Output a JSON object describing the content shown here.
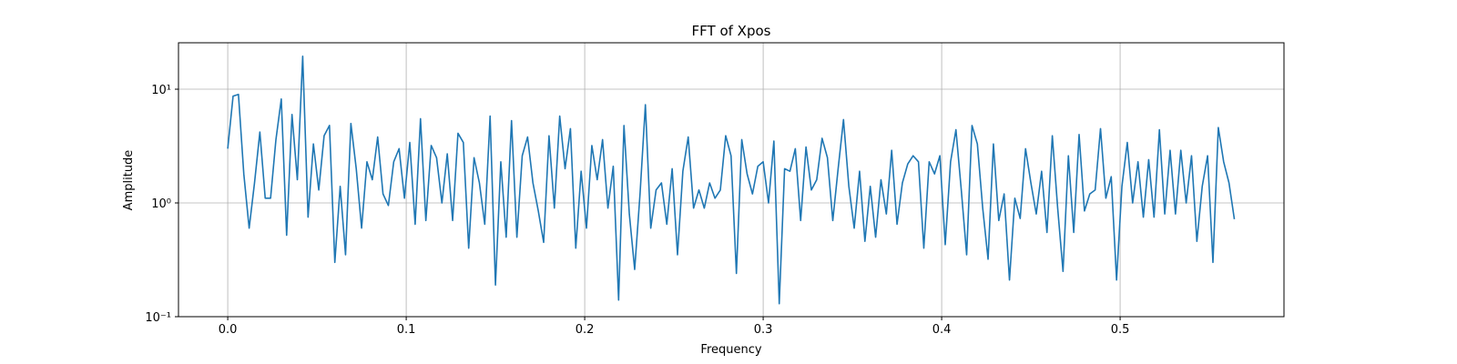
{
  "chart_data": {
    "type": "line",
    "title": "FFT of Xpos",
    "x_label": "Frequency",
    "y_label": "Amplitude",
    "log_y": true,
    "grid": true,
    "xlim": [
      -0.0276,
      0.5918
    ],
    "ylim": [
      0.1,
      25.6
    ],
    "xticks": [
      {
        "value": 0,
        "label": "0.0"
      },
      0.1,
      0.2,
      0.3,
      0.4,
      0.5
    ],
    "yticks": [
      {
        "value": 0.1,
        "label": "10⁻¹"
      },
      {
        "value": 1,
        "label": "10⁰"
      },
      {
        "value": 10,
        "label": "10¹"
      }
    ],
    "x": [
      0,
      0.003,
      0.006,
      0.009,
      0.012,
      0.015,
      0.018,
      0.021,
      0.024,
      0.027,
      0.03,
      0.033,
      0.036,
      0.039,
      0.042,
      0.045,
      0.048,
      0.051,
      0.054,
      0.057,
      0.06,
      0.063,
      0.066,
      0.069,
      0.072,
      0.075,
      0.078,
      0.081,
      0.084,
      0.087,
      0.09,
      0.093,
      0.096,
      0.099,
      0.102,
      0.105,
      0.108,
      0.111,
      0.114,
      0.117,
      0.12,
      0.123,
      0.126,
      0.129,
      0.132,
      0.135,
      0.138,
      0.141,
      0.144,
      0.147,
      0.15,
      0.153,
      0.156,
      0.159,
      0.162,
      0.165,
      0.168,
      0.171,
      0.174,
      0.177,
      0.18,
      0.183,
      0.186,
      0.189,
      0.192,
      0.195,
      0.198,
      0.201,
      0.204,
      0.207,
      0.21,
      0.213,
      0.216,
      0.219,
      0.222,
      0.225,
      0.228,
      0.231,
      0.234,
      0.237,
      0.24,
      0.243,
      0.246,
      0.249,
      0.252,
      0.255,
      0.258,
      0.261,
      0.264,
      0.267,
      0.27,
      0.273,
      0.276,
      0.279,
      0.282,
      0.285,
      0.288,
      0.291,
      0.294,
      0.297,
      0.3,
      0.303,
      0.306,
      0.309,
      0.312,
      0.315,
      0.318,
      0.321,
      0.324,
      0.327,
      0.33,
      0.333,
      0.336,
      0.339,
      0.342,
      0.345,
      0.348,
      0.351,
      0.354,
      0.357,
      0.36,
      0.363,
      0.366,
      0.369,
      0.372,
      0.375,
      0.378,
      0.381,
      0.384,
      0.387,
      0.39,
      0.393,
      0.396,
      0.399,
      0.402,
      0.405,
      0.408,
      0.411,
      0.414,
      0.417,
      0.42,
      0.423,
      0.426,
      0.429,
      0.432,
      0.435,
      0.438,
      0.441,
      0.444,
      0.447,
      0.45,
      0.453,
      0.456,
      0.459,
      0.462,
      0.465,
      0.468,
      0.471,
      0.474,
      0.477,
      0.48,
      0.483,
      0.486,
      0.489,
      0.492,
      0.495,
      0.498,
      0.501,
      0.504,
      0.507,
      0.51,
      0.513,
      0.516,
      0.519,
      0.522,
      0.525,
      0.528,
      0.531,
      0.534,
      0.537,
      0.54,
      0.543,
      0.546,
      0.549,
      0.552,
      0.555,
      0.558,
      0.561,
      0.564
    ],
    "series": [
      {
        "color": "#1f77b4",
        "values": [
          3.0,
          8.7,
          9.0,
          1.8,
          0.6,
          1.5,
          4.2,
          1.1,
          1.1,
          3.6,
          8.2,
          0.52,
          6.0,
          1.6,
          19.5,
          0.75,
          3.3,
          1.3,
          3.9,
          4.8,
          0.3,
          1.4,
          0.35,
          5.0,
          2.0,
          0.6,
          2.3,
          1.6,
          3.8,
          1.2,
          0.95,
          2.3,
          3.0,
          1.1,
          3.4,
          0.65,
          5.5,
          0.7,
          3.2,
          2.5,
          1.0,
          2.7,
          0.7,
          4.1,
          3.4,
          0.4,
          2.5,
          1.5,
          0.65,
          5.8,
          0.19,
          2.3,
          0.5,
          5.3,
          0.5,
          2.6,
          3.8,
          1.5,
          0.85,
          0.45,
          3.9,
          0.9,
          5.8,
          2.0,
          4.5,
          0.4,
          1.9,
          0.6,
          3.2,
          1.6,
          3.6,
          0.9,
          2.1,
          0.14,
          4.8,
          0.8,
          0.26,
          1.2,
          7.3,
          0.6,
          1.3,
          1.5,
          0.65,
          2.0,
          0.35,
          1.9,
          3.8,
          0.9,
          1.3,
          0.9,
          1.5,
          1.1,
          1.3,
          3.9,
          2.6,
          0.24,
          3.6,
          1.8,
          1.2,
          2.1,
          2.3,
          1.0,
          3.5,
          0.13,
          2.0,
          1.9,
          3.0,
          0.7,
          3.1,
          1.3,
          1.6,
          3.7,
          2.5,
          0.7,
          2.0,
          5.4,
          1.4,
          0.6,
          1.9,
          0.46,
          1.4,
          0.5,
          1.6,
          0.8,
          2.9,
          0.65,
          1.5,
          2.2,
          2.6,
          2.3,
          0.4,
          2.3,
          1.8,
          2.6,
          0.43,
          2.3,
          4.4,
          1.3,
          0.35,
          4.8,
          3.3,
          0.9,
          0.32,
          3.3,
          0.7,
          1.2,
          0.21,
          1.1,
          0.73,
          3.0,
          1.5,
          0.8,
          1.9,
          0.55,
          3.9,
          0.9,
          0.25,
          2.6,
          0.55,
          4.0,
          0.85,
          1.2,
          1.3,
          4.5,
          1.1,
          1.7,
          0.21,
          1.4,
          3.4,
          1.0,
          2.3,
          0.75,
          2.4,
          0.75,
          4.4,
          0.8,
          2.9,
          0.8,
          2.9,
          1.0,
          2.6,
          0.46,
          1.4,
          2.6,
          0.3,
          4.6,
          2.3,
          1.5,
          0.72
        ]
      }
    ]
  }
}
